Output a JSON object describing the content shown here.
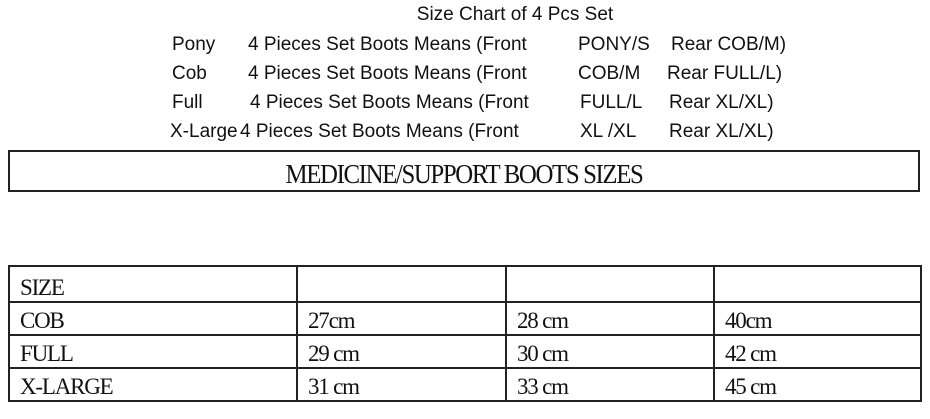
{
  "title": "Size Chart of 4 Pcs Set",
  "sets": [
    {
      "size": "Pony",
      "desc": "4 Pieces Set Boots Means (Front",
      "front": "PONY/S",
      "rear": "Rear COB/M)"
    },
    {
      "size": "Cob",
      "desc": "4 Pieces Set Boots Means (Front",
      "front": "COB/M",
      "rear": "Rear FULL/L)"
    },
    {
      "size": "Full",
      "desc": "4 Pieces Set Boots Means (Front",
      "front": "FULL/L",
      "rear": "Rear XL/XL)"
    },
    {
      "size": "X-Large",
      "desc": "4 Pieces Set Boots Means (Front",
      "front": "XL /XL",
      "rear": "Rear XL/XL)"
    }
  ],
  "banner": "MEDICINE/SUPPORT BOOTS SIZES",
  "table": {
    "header": [
      "SIZE",
      "",
      "",
      ""
    ],
    "rows": [
      [
        "COB",
        "27cm",
        "28 cm",
        "40cm"
      ],
      [
        "FULL",
        "29 cm",
        "30 cm",
        "42 cm"
      ],
      [
        "X-LARGE",
        "31 cm",
        "33 cm",
        "45 cm"
      ]
    ]
  }
}
